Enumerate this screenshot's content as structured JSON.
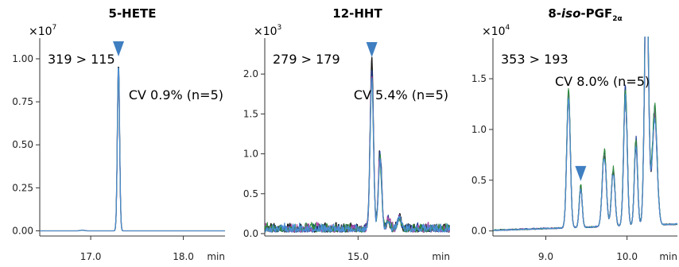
{
  "chart_data": [
    {
      "type": "line",
      "title": "5-HETE",
      "y_exponent_base": "×10",
      "y_exponent_power": "7",
      "x_unit": "min",
      "transition": "319 > 115",
      "cv": "CV 0.9% (n=5)",
      "xlim": [
        16.45,
        18.45
      ],
      "ylim": [
        -0.03,
        1.12
      ],
      "x_ticks": [
        {
          "v": 17.0,
          "label": "17.0"
        },
        {
          "v": 18.0,
          "label": "18.0"
        }
      ],
      "y_ticks": [
        {
          "v": 0.0,
          "label": "0.00"
        },
        {
          "v": 0.25,
          "label": "0.25"
        },
        {
          "v": 0.5,
          "label": "0.50"
        },
        {
          "v": 0.75,
          "label": "0.75"
        },
        {
          "v": 1.0,
          "label": "1.00"
        }
      ],
      "marker": {
        "x": 17.3,
        "y": 1.06
      },
      "noise": 0.0,
      "peaks": [
        {
          "x": 17.3,
          "h": 0.97,
          "w": 0.012
        },
        {
          "x": 16.91,
          "h": 0.004,
          "w": 0.02
        }
      ],
      "series": [
        {
          "color": "#1a1a1a",
          "scale": 1.0
        },
        {
          "color": "#1f3a93",
          "scale": 0.99
        },
        {
          "color": "#b04aa6",
          "scale": 0.985
        },
        {
          "color": "#2e8b3e",
          "scale": 0.99
        },
        {
          "color": "#4a8ed8",
          "scale": 0.995
        }
      ]
    },
    {
      "type": "line",
      "title": "12-HHT",
      "y_exponent_base": "×10",
      "y_exponent_power": "3",
      "x_unit": "min",
      "transition": "279 > 179",
      "cv": "CV 5.4% (n=5)",
      "xlim": [
        14.32,
        15.67
      ],
      "ylim": [
        -0.03,
        2.45
      ],
      "x_ticks": [
        {
          "v": 15.0,
          "label": "15.0"
        }
      ],
      "y_ticks": [
        {
          "v": 0.0,
          "label": "0.0"
        },
        {
          "v": 0.5,
          "label": "0.5"
        },
        {
          "v": 1.0,
          "label": "1.0"
        },
        {
          "v": 1.5,
          "label": "1.5"
        },
        {
          "v": 2.0,
          "label": "2.0"
        }
      ],
      "marker": {
        "x": 15.1,
        "y": 2.31
      },
      "noise": 0.12,
      "peaks": [
        {
          "x": 15.1,
          "h": 2.05,
          "w": 0.012
        },
        {
          "x": 15.16,
          "h": 0.95,
          "w": 0.012
        },
        {
          "x": 15.22,
          "h": 0.12,
          "w": 0.01
        },
        {
          "x": 15.3,
          "h": 0.16,
          "w": 0.012
        }
      ],
      "series": [
        {
          "color": "#1a1a1a",
          "scale": 1.03
        },
        {
          "color": "#1f3a93",
          "scale": 0.98
        },
        {
          "color": "#b04aa6",
          "scale": 0.95
        },
        {
          "color": "#2e8b3e",
          "scale": 0.9
        },
        {
          "color": "#4a8ed8",
          "scale": 0.93
        }
      ]
    },
    {
      "type": "line",
      "title": "8-iso-PGF2α",
      "title_parts": {
        "pre": "8-",
        "italic": "iso",
        "mid": "-PGF",
        "sub": "2α"
      },
      "y_exponent_base": "×10",
      "y_exponent_power": "4",
      "x_unit": "min",
      "transition": "353 > 193",
      "cv": "CV 8.0% (n=5)",
      "xlim": [
        8.35,
        10.62
      ],
      "ylim": [
        -0.05,
        1.9
      ],
      "x_ticks": [
        {
          "v": 9.0,
          "label": "9.0"
        },
        {
          "v": 10.0,
          "label": "10.0"
        }
      ],
      "y_ticks": [
        {
          "v": 0.0,
          "label": "0.0"
        },
        {
          "v": 0.5,
          "label": "0.5"
        },
        {
          "v": 1.0,
          "label": "1.0"
        },
        {
          "v": 1.5,
          "label": "1.5"
        }
      ],
      "marker": {
        "x": 9.43,
        "y": 0.57
      },
      "noise": 0.012,
      "baseline_slope": 0.06,
      "peaks": [
        {
          "x": 9.28,
          "h": 1.32,
          "w": 0.022
        },
        {
          "x": 9.43,
          "h": 0.4,
          "w": 0.018
        },
        {
          "x": 9.72,
          "h": 0.72,
          "w": 0.025
        },
        {
          "x": 9.83,
          "h": 0.55,
          "w": 0.022
        },
        {
          "x": 9.98,
          "h": 1.3,
          "w": 0.022
        },
        {
          "x": 10.11,
          "h": 0.82,
          "w": 0.02
        },
        {
          "x": 10.24,
          "h": 2.6,
          "w": 0.024
        },
        {
          "x": 10.34,
          "h": 1.1,
          "w": 0.03
        }
      ],
      "series": [
        {
          "color": "#1a1a1a",
          "scale": 0.98
        },
        {
          "color": "#1f3a93",
          "scale": 1.02
        },
        {
          "color": "#b04aa6",
          "scale": 1.0
        },
        {
          "color": "#2e8b3e",
          "scale": 1.04
        },
        {
          "color": "#4a8ed8",
          "scale": 0.97
        }
      ]
    }
  ],
  "colors": {
    "axis": "#333333",
    "marker": "#3f7fc1"
  }
}
